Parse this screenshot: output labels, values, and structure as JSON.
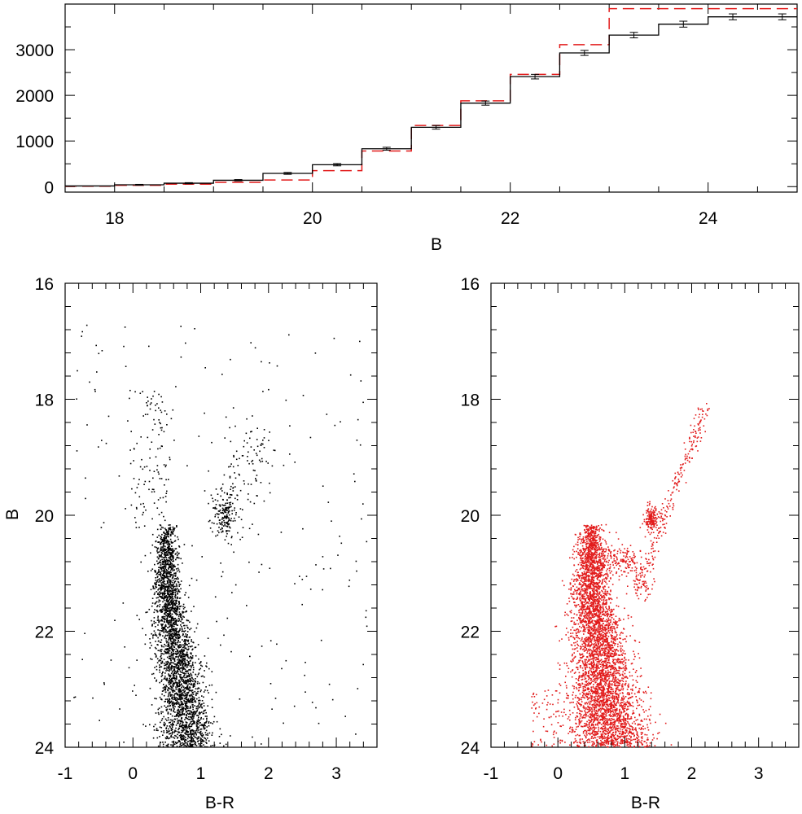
{
  "chart_data": [
    {
      "panel": "top",
      "type": "line",
      "xlabel": "B",
      "ylabel": "",
      "xlim": [
        17.5,
        24.9
      ],
      "ylim": [
        -120,
        4000
      ],
      "x_ticks": [
        18,
        20,
        22,
        24
      ],
      "y_ticks": [
        0,
        1000,
        2000,
        3000
      ],
      "x_minor_step": 0.5,
      "y_minor_step": 500,
      "bin_edges": [
        17.5,
        18.0,
        18.5,
        19.0,
        19.5,
        20.0,
        20.5,
        21.0,
        21.5,
        22.0,
        22.5,
        23.0,
        23.5,
        24.0,
        24.9
      ],
      "series": [
        {
          "style": "solid",
          "color": "#000000",
          "values": [
            15,
            40,
            75,
            140,
            290,
            480,
            830,
            1300,
            1830,
            2410,
            2930,
            3320,
            3560,
            3720
          ],
          "error_x": [
            18.25,
            18.75,
            19.25,
            19.75,
            20.25,
            20.75,
            21.25,
            21.75,
            22.25,
            22.75,
            23.25,
            23.75,
            24.25,
            24.75
          ],
          "error_y": [
            40,
            75,
            140,
            290,
            480,
            830,
            1300,
            1830,
            2410,
            2930,
            3320,
            3560,
            3720,
            3720
          ],
          "errors": [
            10,
            12,
            15,
            20,
            25,
            32,
            40,
            45,
            50,
            55,
            60,
            65,
            65,
            65
          ]
        },
        {
          "style": "dashed",
          "color": "#e21b1b",
          "values": [
            10,
            30,
            55,
            95,
            145,
            350,
            780,
            1340,
            1880,
            2460,
            3110,
            3900,
            3900,
            3900
          ]
        }
      ]
    },
    {
      "panel": "bottom-left",
      "type": "scatter",
      "xlabel": "B-R",
      "ylabel": "B",
      "xlim": [
        -1,
        3.6
      ],
      "ylim": [
        24,
        16
      ],
      "x_ticks": [
        -1,
        0,
        1,
        2,
        3
      ],
      "y_ticks": [
        16,
        18,
        20,
        22,
        24
      ],
      "x_minor_step": 0.2,
      "y_minor_step": 0.4,
      "color": "#000000"
    },
    {
      "panel": "bottom-right",
      "type": "scatter",
      "xlabel": "B-R",
      "ylabel": "",
      "xlim": [
        -1,
        3.6
      ],
      "ylim": [
        24,
        16
      ],
      "x_ticks": [
        -1,
        0,
        1,
        2,
        3
      ],
      "y_ticks": [
        16,
        18,
        20,
        22,
        24
      ],
      "x_minor_step": 0.2,
      "y_minor_step": 0.4,
      "color": "#e21b1b"
    }
  ]
}
